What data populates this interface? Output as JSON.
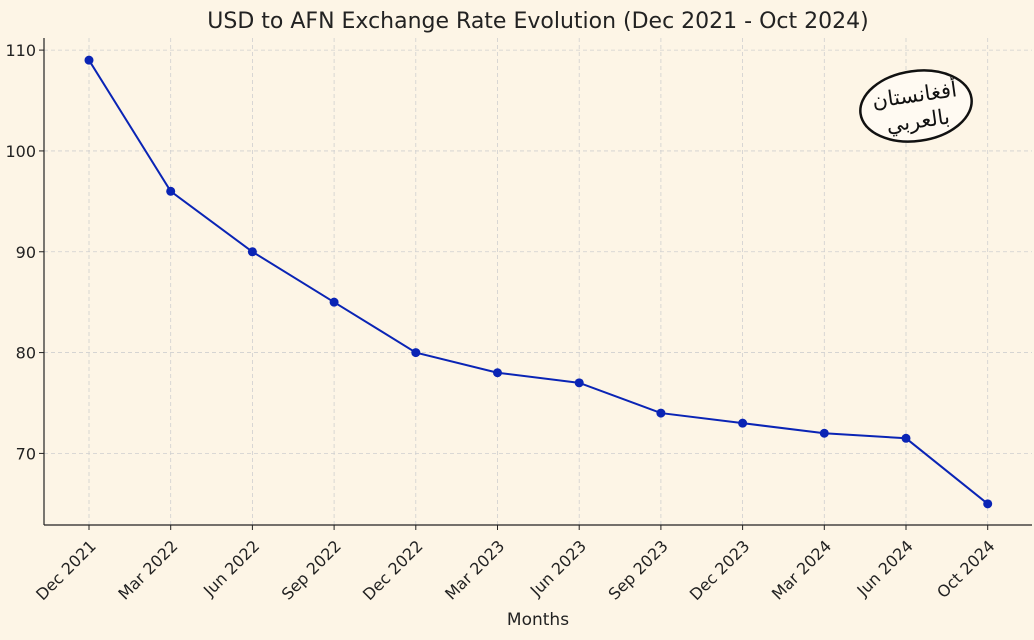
{
  "chart_data": {
    "type": "line",
    "title": "USD to AFN Exchange Rate Evolution (Dec 2021 - Oct 2024)",
    "xlabel": "Months",
    "ylabel": "",
    "categories": [
      "Dec 2021",
      "Mar 2022",
      "Jun 2022",
      "Sep 2022",
      "Dec 2022",
      "Mar 2023",
      "Jun 2023",
      "Sep 2023",
      "Dec 2023",
      "Mar 2024",
      "Jun 2024",
      "Oct 2024"
    ],
    "series": [
      {
        "values": [
          109,
          96,
          90,
          85,
          80,
          78,
          77,
          74,
          73,
          72,
          71.5,
          65
        ],
        "color": "#0a24b5"
      }
    ],
    "yticks": [
      70,
      80,
      90,
      100,
      110
    ],
    "ylim": [
      62.9,
      111.2
    ],
    "grid": true,
    "legend": "none"
  },
  "logo": {
    "line1": "أفغانستان",
    "line2": "بالعربي"
  }
}
